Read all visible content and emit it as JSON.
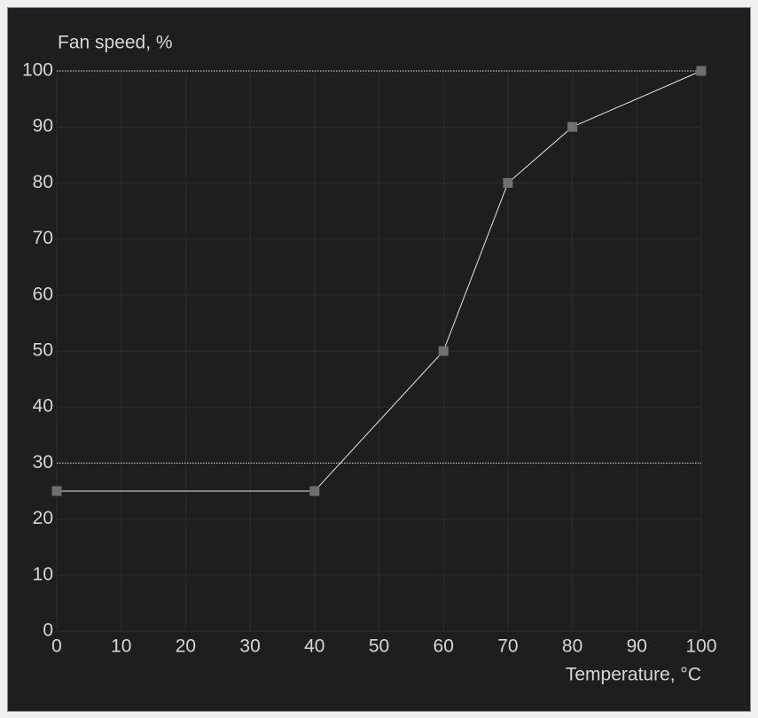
{
  "chart_data": {
    "type": "line",
    "y_label": "Fan speed, %",
    "x_label": "Temperature, °C",
    "x": [
      0,
      40,
      60,
      70,
      80,
      100
    ],
    "values": [
      25,
      25,
      50,
      80,
      90,
      100
    ],
    "color": "#e6e6e6",
    "marker_color": "#6f6f6f",
    "xlim": [
      0,
      100
    ],
    "xticks": [
      0,
      10,
      20,
      30,
      40,
      50,
      60,
      70,
      80,
      90,
      100
    ],
    "ylim": [
      0,
      100
    ],
    "yticks": [
      0,
      10,
      20,
      30,
      40,
      50,
      60,
      70,
      80,
      90,
      100
    ],
    "reference_lines": [
      100,
      30
    ],
    "grid": true
  }
}
